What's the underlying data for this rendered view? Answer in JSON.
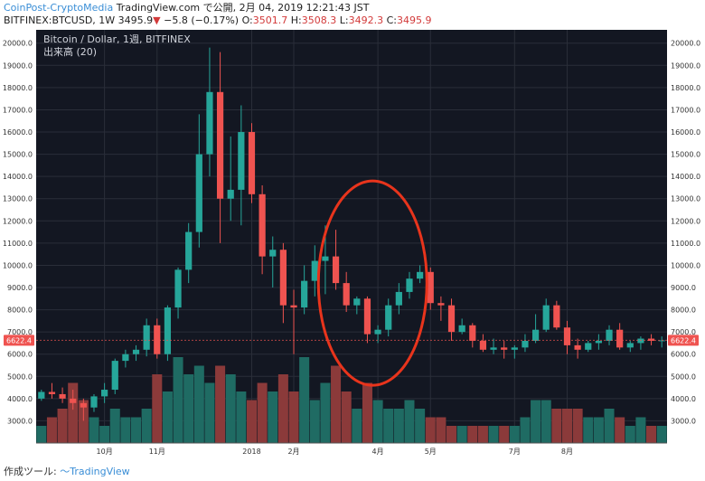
{
  "header": {
    "brand": "CoinPost-CryptoMedia",
    "published": "TradingView.com で公開, 2月 04, 2019 12:21:43 JST",
    "symbol": "BITFINEX:BTCUSD, 1W 3495.9",
    "change_arrow": "▼",
    "change": "−5.8 (−0.17%)",
    "o_label": "O:",
    "o_val": "3501.7",
    "h_label": "H:",
    "h_val": "3508.3",
    "l_label": "L:",
    "l_val": "3492.3",
    "c_label": "C:",
    "c_val": "3495.9"
  },
  "footer": {
    "label": "作成ツール:",
    "brand": "TradingView"
  },
  "colors": {
    "up": "#26a69a",
    "down": "#ef5350",
    "vol_up": "#1f6b63",
    "vol_down": "#8b3a3a",
    "background": "#131722",
    "grid": "#2a2e39",
    "highlight_ring": "#e8341c"
  },
  "chart_data": {
    "type": "candlestick",
    "title": "Bitcoin / Dollar, 1週, BITFINEX",
    "volume_label": "出来高 (20)",
    "last_price_label": "6622.4",
    "last_price": 6622.4,
    "ylim": [
      2000,
      20600
    ],
    "y_ticks": [
      3000,
      4000,
      5000,
      6000,
      7000,
      8000,
      9000,
      10000,
      11000,
      12000,
      13000,
      14000,
      15000,
      16000,
      17000,
      18000,
      19000,
      20000
    ],
    "x_ticks": [
      {
        "label": "10月",
        "index": 6
      },
      {
        "label": "11月",
        "index": 11
      },
      {
        "label": "2018",
        "index": 20
      },
      {
        "label": "2月",
        "index": 24
      },
      {
        "label": "4月",
        "index": 32
      },
      {
        "label": "5月",
        "index": 37
      },
      {
        "label": "7月",
        "index": 45
      },
      {
        "label": "8月",
        "index": 50
      }
    ],
    "candles": [
      [
        4000,
        4400,
        3900,
        4300,
        2
      ],
      [
        4300,
        4700,
        4000,
        4200,
        3
      ],
      [
        4200,
        4500,
        3800,
        4000,
        4
      ],
      [
        4000,
        4400,
        3500,
        3800,
        7
      ],
      [
        3800,
        4000,
        3000,
        3600,
        5
      ],
      [
        3600,
        4200,
        3400,
        4100,
        3
      ],
      [
        4100,
        4700,
        3800,
        4400,
        2
      ],
      [
        4400,
        5800,
        4200,
        5700,
        4
      ],
      [
        5700,
        6200,
        5400,
        6000,
        3
      ],
      [
        6000,
        6400,
        5700,
        6200,
        3
      ],
      [
        6200,
        7600,
        5900,
        7300,
        4
      ],
      [
        7300,
        7600,
        5800,
        6000,
        8
      ],
      [
        6000,
        8200,
        5700,
        8100,
        6
      ],
      [
        8100,
        9900,
        7600,
        9800,
        10
      ],
      [
        9800,
        11900,
        9200,
        11500,
        8
      ],
      [
        11500,
        16800,
        10800,
        15000,
        9
      ],
      [
        15000,
        19800,
        14000,
        17800,
        7
      ],
      [
        17800,
        19600,
        11000,
        13000,
        9
      ],
      [
        13000,
        15800,
        12000,
        13400,
        8
      ],
      [
        13400,
        17200,
        11800,
        16000,
        6
      ],
      [
        16000,
        16400,
        12800,
        13200,
        5
      ],
      [
        13200,
        13600,
        9600,
        10400,
        7
      ],
      [
        10400,
        11300,
        9000,
        10700,
        6
      ],
      [
        10700,
        11000,
        7400,
        8200,
        8
      ],
      [
        8200,
        8900,
        6000,
        8100,
        6
      ],
      [
        8100,
        10000,
        7800,
        9300,
        10
      ],
      [
        9300,
        10900,
        8600,
        10200,
        5
      ],
      [
        10200,
        11800,
        8700,
        10400,
        7
      ],
      [
        10400,
        11600,
        8900,
        9200,
        9
      ],
      [
        9200,
        9700,
        7900,
        8200,
        6
      ],
      [
        8200,
        8600,
        7800,
        8500,
        4
      ],
      [
        8500,
        8600,
        6500,
        6900,
        7
      ],
      [
        6900,
        7300,
        6500,
        7100,
        5
      ],
      [
        7100,
        8500,
        6800,
        8200,
        4
      ],
      [
        8200,
        9200,
        7800,
        8800,
        4
      ],
      [
        8800,
        9700,
        8500,
        9400,
        5
      ],
      [
        9400,
        10000,
        9200,
        9700,
        4
      ],
      [
        9700,
        9900,
        8000,
        8300,
        3
      ],
      [
        8300,
        8600,
        7500,
        8200,
        3
      ],
      [
        8200,
        8500,
        6600,
        7000,
        2
      ],
      [
        7000,
        7600,
        6900,
        7300,
        2
      ],
      [
        7300,
        7400,
        6300,
        6600,
        2
      ],
      [
        6600,
        6900,
        6100,
        6200,
        2
      ],
      [
        6200,
        6700,
        6000,
        6300,
        2
      ],
      [
        6300,
        6600,
        5800,
        6200,
        2
      ],
      [
        6200,
        6400,
        5800,
        6300,
        2
      ],
      [
        6300,
        6900,
        6100,
        6600,
        3
      ],
      [
        6600,
        7800,
        6500,
        7100,
        5
      ],
      [
        7100,
        8500,
        7000,
        8200,
        5
      ],
      [
        8200,
        8400,
        7100,
        7200,
        4
      ],
      [
        7200,
        7500,
        6000,
        6400,
        4
      ],
      [
        6400,
        6700,
        5800,
        6200,
        4
      ],
      [
        6200,
        6600,
        6100,
        6500,
        3
      ],
      [
        6500,
        6900,
        6200,
        6600,
        3
      ],
      [
        6600,
        7300,
        6400,
        7100,
        4
      ],
      [
        7100,
        7400,
        6200,
        6300,
        3
      ],
      [
        6300,
        6600,
        6100,
        6500,
        2
      ],
      [
        6500,
        6800,
        6200,
        6700,
        3
      ],
      [
        6700,
        6900,
        6400,
        6600,
        2
      ],
      [
        6600,
        6800,
        6300,
        6622.4,
        2
      ]
    ],
    "highlight": {
      "center_index": 31.5,
      "center_price": 9200
    }
  }
}
